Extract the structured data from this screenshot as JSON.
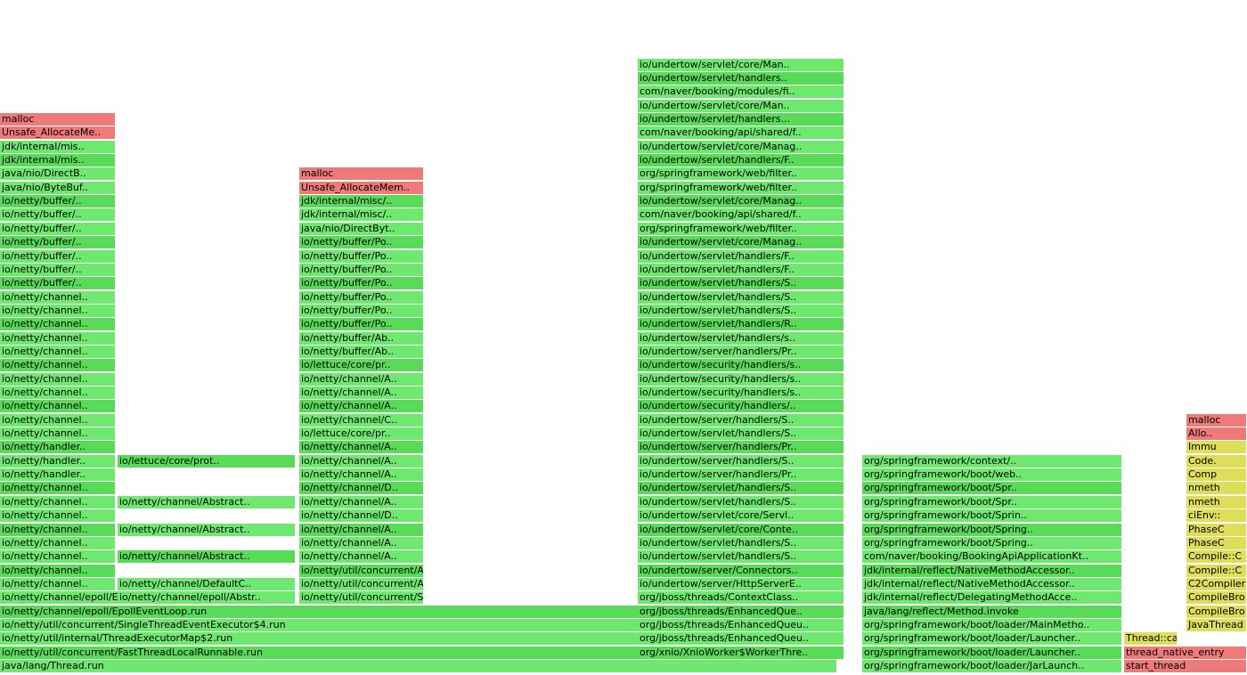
{
  "colors": {
    "java": "#6ee86e",
    "java_alt": "#58dc58",
    "native": "#ee7a7a",
    "jvm": "#dede5a"
  },
  "frames": [
    {
      "name": "java/lang/Thread.run",
      "kind": "g",
      "col": 0,
      "row": 0
    },
    {
      "name": "io/netty/util/concurrent/FastThreadLocalRunnable.run",
      "kind": "g",
      "col": 0,
      "row": 1
    },
    {
      "name": "io/netty/util/internal/ThreadExecutorMap$2.run",
      "kind": "g",
      "col": 0,
      "row": 2
    },
    {
      "name": "io/netty/util/concurrent/SingleThreadEventExecutor$4.run",
      "kind": "g",
      "col": 0,
      "row": 3
    },
    {
      "name": "io/netty/channel/epoll/EpollEventLoop.run",
      "kind": "g",
      "col": 0,
      "row": 4
    },
    {
      "name": "io/netty/channel/epoll/EpollEventLoop.processR..",
      "kind": "g",
      "col": 0,
      "row": 5
    },
    {
      "name": "io/netty/channel..",
      "kind": "g",
      "col": 0,
      "row": 6
    },
    {
      "name": "io/netty/channel..",
      "kind": "g",
      "col": 0,
      "row": 7
    },
    {
      "name": "io/netty/channel..",
      "kind": "g",
      "col": 0,
      "row": 8
    },
    {
      "name": "io/netty/channel..",
      "kind": "g",
      "col": 0,
      "row": 9
    },
    {
      "name": "io/netty/channel..",
      "kind": "g",
      "col": 0,
      "row": 10
    },
    {
      "name": "io/netty/channel..",
      "kind": "g",
      "col": 0,
      "row": 11
    },
    {
      "name": "io/netty/channel..",
      "kind": "g",
      "col": 0,
      "row": 12
    },
    {
      "name": "io/netty/channel..",
      "kind": "g",
      "col": 0,
      "row": 13
    },
    {
      "name": "io/netty/handler..",
      "kind": "g",
      "col": 0,
      "row": 14
    },
    {
      "name": "io/netty/handler..",
      "kind": "g",
      "col": 0,
      "row": 15
    },
    {
      "name": "io/netty/handler..",
      "kind": "g",
      "col": 0,
      "row": 16
    },
    {
      "name": "io/netty/channel..",
      "kind": "g",
      "col": 0,
      "row": 17
    },
    {
      "name": "io/netty/channel..",
      "kind": "g",
      "col": 0,
      "row": 18
    },
    {
      "name": "io/netty/channel..",
      "kind": "g",
      "col": 0,
      "row": 19
    },
    {
      "name": "io/netty/channel..",
      "kind": "g",
      "col": 0,
      "row": 20
    },
    {
      "name": "io/netty/channel..",
      "kind": "g",
      "col": 0,
      "row": 21
    },
    {
      "name": "io/netty/channel..",
      "kind": "g",
      "col": 0,
      "row": 22
    },
    {
      "name": "io/netty/channel..",
      "kind": "g",
      "col": 0,
      "row": 23
    },
    {
      "name": "io/netty/channel..",
      "kind": "g",
      "col": 0,
      "row": 24
    },
    {
      "name": "io/netty/channel..",
      "kind": "g",
      "col": 0,
      "row": 25
    },
    {
      "name": "io/netty/channel..",
      "kind": "g",
      "col": 0,
      "row": 26
    },
    {
      "name": "io/netty/channel..",
      "kind": "g",
      "col": 0,
      "row": 27
    },
    {
      "name": "io/netty/buffer/..",
      "kind": "g",
      "col": 0,
      "row": 28
    },
    {
      "name": "io/netty/buffer/..",
      "kind": "g",
      "col": 0,
      "row": 29
    },
    {
      "name": "io/netty/buffer/..",
      "kind": "g",
      "col": 0,
      "row": 30
    },
    {
      "name": "io/netty/buffer/..",
      "kind": "g",
      "col": 0,
      "row": 31
    },
    {
      "name": "io/netty/buffer/..",
      "kind": "g",
      "col": 0,
      "row": 32
    },
    {
      "name": "io/netty/buffer/..",
      "kind": "g",
      "col": 0,
      "row": 33
    },
    {
      "name": "io/netty/buffer/..",
      "kind": "g",
      "col": 0,
      "row": 34
    },
    {
      "name": "java/nio/ByteBuf..",
      "kind": "g",
      "col": 0,
      "row": 35
    },
    {
      "name": "java/nio/DirectB..",
      "kind": "g",
      "col": 0,
      "row": 36
    },
    {
      "name": "jdk/internal/mis..",
      "kind": "g",
      "col": 0,
      "row": 37
    },
    {
      "name": "jdk/internal/mis..",
      "kind": "g",
      "col": 0,
      "row": 38
    },
    {
      "name": "Unsafe_AllocateMe..",
      "kind": "r",
      "col": 0,
      "row": 39
    },
    {
      "name": "malloc",
      "kind": "r",
      "col": 0,
      "row": 40
    },
    {
      "name": "io/netty/channel/DefaultC..",
      "kind": "g",
      "col": 1,
      "row": 6
    },
    {
      "name": "io/netty/channel/epoll/Abstr..",
      "kind": "g",
      "col": 1,
      "row": 5
    },
    {
      "name": "io/netty/channel/Abstract..",
      "kind": "g",
      "col": 1,
      "row": 8
    },
    {
      "name": "io/netty/channel/Abstract..",
      "kind": "g",
      "col": 1,
      "row": 10
    },
    {
      "name": "io/netty/channel/Abstract..",
      "kind": "g",
      "col": 1,
      "row": 12
    },
    {
      "name": "io/lettuce/core/prot..",
      "kind": "g",
      "col": 1,
      "row": 15
    },
    {
      "name": "io/netty/util/concurrent/SingleThre..",
      "kind": "g",
      "col": 2,
      "row": 5
    },
    {
      "name": "io/netty/util/concurrent/AbstractEv..",
      "kind": "g",
      "col": 2,
      "row": 6
    },
    {
      "name": "io/netty/util/concurrent/AbstractEv..",
      "kind": "g",
      "col": 2,
      "row": 7
    },
    {
      "name": "io/netty/channel/A..",
      "kind": "g",
      "col": 2,
      "row": 8
    },
    {
      "name": "io/netty/channel/A..",
      "kind": "g",
      "col": 2,
      "row": 9
    },
    {
      "name": "io/netty/channel/A..",
      "kind": "g",
      "col": 2,
      "row": 10
    },
    {
      "name": "io/netty/channel/D..",
      "kind": "g",
      "col": 2,
      "row": 11
    },
    {
      "name": "io/netty/channel/A..",
      "kind": "g",
      "col": 2,
      "row": 12
    },
    {
      "name": "io/netty/channel/D..",
      "kind": "g",
      "col": 2,
      "row": 13
    },
    {
      "name": "io/netty/channel/A..",
      "kind": "g",
      "col": 2,
      "row": 14
    },
    {
      "name": "io/netty/channel/A..",
      "kind": "g",
      "col": 2,
      "row": 15
    },
    {
      "name": "io/netty/channel/A..",
      "kind": "g",
      "col": 2,
      "row": 16
    },
    {
      "name": "io/lettuce/core/pr..",
      "kind": "g",
      "col": 2,
      "row": 17
    },
    {
      "name": "io/netty/channel/C..",
      "kind": "g",
      "col": 2,
      "row": 18
    },
    {
      "name": "io/netty/channel/A..",
      "kind": "g",
      "col": 2,
      "row": 19
    },
    {
      "name": "io/netty/channel/A..",
      "kind": "g",
      "col": 2,
      "row": 20
    },
    {
      "name": "io/netty/channel/A..",
      "kind": "g",
      "col": 2,
      "row": 21
    },
    {
      "name": "io/lettuce/core/pr..",
      "kind": "g",
      "col": 2,
      "row": 22
    },
    {
      "name": "io/netty/buffer/Ab..",
      "kind": "g",
      "col": 2,
      "row": 23
    },
    {
      "name": "io/netty/buffer/Ab..",
      "kind": "g",
      "col": 2,
      "row": 24
    },
    {
      "name": "io/netty/buffer/Po..",
      "kind": "g",
      "col": 2,
      "row": 25
    },
    {
      "name": "io/netty/buffer/Po..",
      "kind": "g",
      "col": 2,
      "row": 26
    },
    {
      "name": "io/netty/buffer/Po..",
      "kind": "g",
      "col": 2,
      "row": 27
    },
    {
      "name": "io/netty/buffer/Po..",
      "kind": "g",
      "col": 2,
      "row": 28
    },
    {
      "name": "io/netty/buffer/Po..",
      "kind": "g",
      "col": 2,
      "row": 29
    },
    {
      "name": "io/netty/buffer/Po..",
      "kind": "g",
      "col": 2,
      "row": 30
    },
    {
      "name": "io/netty/buffer/Po..",
      "kind": "g",
      "col": 2,
      "row": 31
    },
    {
      "name": "java/nio/DirectByt..",
      "kind": "g",
      "col": 2,
      "row": 32
    },
    {
      "name": "jdk/internal/misc/..",
      "kind": "g",
      "col": 2,
      "row": 33
    },
    {
      "name": "jdk/internal/misc/..",
      "kind": "g",
      "col": 2,
      "row": 34
    },
    {
      "name": "Unsafe_AllocateMem..",
      "kind": "r",
      "col": 2,
      "row": 35
    },
    {
      "name": "malloc",
      "kind": "r",
      "col": 2,
      "row": 36
    },
    {
      "name": "org/xnio/XnioWorker$WorkerThre..",
      "kind": "g",
      "col": 3,
      "row": 1
    },
    {
      "name": "org/jboss/threads/EnhancedQueu..",
      "kind": "g",
      "col": 3,
      "row": 2
    },
    {
      "name": "org/jboss/threads/EnhancedQueu..",
      "kind": "g",
      "col": 3,
      "row": 3
    },
    {
      "name": "org/jboss/threads/EnhancedQue..",
      "kind": "g",
      "col": 3,
      "row": 4
    },
    {
      "name": "org/jboss/threads/ContextClass..",
      "kind": "g",
      "col": 3,
      "row": 5
    },
    {
      "name": "io/undertow/server/HttpServerE..",
      "kind": "g",
      "col": 3,
      "row": 6
    },
    {
      "name": "io/undertow/server/Connectors..",
      "kind": "g",
      "col": 3,
      "row": 7
    },
    {
      "name": "io/undertow/servlet/handlers/S..",
      "kind": "g",
      "col": 3,
      "row": 8
    },
    {
      "name": "io/undertow/servlet/handlers/S..",
      "kind": "g",
      "col": 3,
      "row": 9
    },
    {
      "name": "io/undertow/servlet/core/Conte..",
      "kind": "g",
      "col": 3,
      "row": 10
    },
    {
      "name": "io/undertow/servlet/core/Servl..",
      "kind": "g",
      "col": 3,
      "row": 11
    },
    {
      "name": "io/undertow/servlet/handlers/S..",
      "kind": "g",
      "col": 3,
      "row": 12
    },
    {
      "name": "io/undertow/servlet/handlers/S..",
      "kind": "g",
      "col": 3,
      "row": 13
    },
    {
      "name": "io/undertow/server/handlers/Pr..",
      "kind": "g",
      "col": 3,
      "row": 14
    },
    {
      "name": "io/undertow/server/handlers/S..",
      "kind": "g",
      "col": 3,
      "row": 15
    },
    {
      "name": "io/undertow/server/handlers/Pr..",
      "kind": "g",
      "col": 3,
      "row": 16
    },
    {
      "name": "io/undertow/servlet/handlers/S..",
      "kind": "g",
      "col": 3,
      "row": 17
    },
    {
      "name": "io/undertow/server/handlers/S..",
      "kind": "g",
      "col": 3,
      "row": 18
    },
    {
      "name": "io/undertow/security/handlers/..",
      "kind": "g",
      "col": 3,
      "row": 19
    },
    {
      "name": "io/undertow/security/handlers/s..",
      "kind": "g",
      "col": 3,
      "row": 20
    },
    {
      "name": "io/undertow/security/handlers/s..",
      "kind": "g",
      "col": 3,
      "row": 21
    },
    {
      "name": "io/undertow/security/handlers/s..",
      "kind": "g",
      "col": 3,
      "row": 22
    },
    {
      "name": "io/undertow/server/handlers/Pr..",
      "kind": "g",
      "col": 3,
      "row": 23
    },
    {
      "name": "io/undertow/servlet/handlers/s..",
      "kind": "g",
      "col": 3,
      "row": 24
    },
    {
      "name": "io/undertow/servlet/handlers/R..",
      "kind": "g",
      "col": 3,
      "row": 25
    },
    {
      "name": "io/undertow/servlet/handlers/S..",
      "kind": "g",
      "col": 3,
      "row": 26
    },
    {
      "name": "io/undertow/servlet/handlers/S..",
      "kind": "g",
      "col": 3,
      "row": 27
    },
    {
      "name": "io/undertow/servlet/handlers/S..",
      "kind": "g",
      "col": 3,
      "row": 28
    },
    {
      "name": "io/undertow/servlet/handlers/F..",
      "kind": "g",
      "col": 3,
      "row": 29
    },
    {
      "name": "io/undertow/servlet/handlers/F..",
      "kind": "g",
      "col": 3,
      "row": 30
    },
    {
      "name": "io/undertow/servlet/core/Manag..",
      "kind": "g",
      "col": 3,
      "row": 31
    },
    {
      "name": "org/springframework/web/filter..",
      "kind": "g",
      "col": 3,
      "row": 32
    },
    {
      "name": "com/naver/booking/api/shared/f..",
      "kind": "g",
      "col": 3,
      "row": 33
    },
    {
      "name": "io/undertow/servlet/core/Manag..",
      "kind": "g",
      "col": 3,
      "row": 34
    },
    {
      "name": "org/springframework/web/filter..",
      "kind": "g",
      "col": 3,
      "row": 35
    },
    {
      "name": "org/springframework/web/filter..",
      "kind": "g",
      "col": 3,
      "row": 36
    },
    {
      "name": "io/undertow/servlet/handlers/F..",
      "kind": "g",
      "col": 3,
      "row": 37
    },
    {
      "name": "io/undertow/servlet/core/Manag..",
      "kind": "g",
      "col": 3,
      "row": 38
    },
    {
      "name": "com/naver/booking/api/shared/f..",
      "kind": "g",
      "col": 3,
      "row": 39
    },
    {
      "name": "io/undertow/servlet/handlers...",
      "kind": "g",
      "col": 3,
      "row": 40
    },
    {
      "name": "io/undertow/servlet/core/Man..",
      "kind": "g",
      "col": 3,
      "row": 41
    },
    {
      "name": "com/naver/booking/modules/fi..",
      "kind": "g",
      "col": 3,
      "row": 42
    },
    {
      "name": "io/undertow/servlet/handlers..",
      "kind": "g",
      "col": 3,
      "row": 43
    },
    {
      "name": "io/undertow/servlet/core/Man..",
      "kind": "g",
      "col": 3,
      "row": 44
    },
    {
      "name": "org/springframework/boot/loader/JarLaunch..",
      "kind": "g",
      "col": 4,
      "row": 0
    },
    {
      "name": "org/springframework/boot/loader/Launcher..",
      "kind": "g",
      "col": 4,
      "row": 1
    },
    {
      "name": "org/springframework/boot/loader/Launcher..",
      "kind": "g",
      "col": 4,
      "row": 2
    },
    {
      "name": "org/springframework/boot/loader/MainMetho..",
      "kind": "g",
      "col": 4,
      "row": 3
    },
    {
      "name": "java/lang/reflect/Method.invoke",
      "kind": "g",
      "col": 4,
      "row": 4
    },
    {
      "name": "jdk/internal/reflect/DelegatingMethodAcce..",
      "kind": "g",
      "col": 4,
      "row": 5
    },
    {
      "name": "jdk/internal/reflect/NativeMethodAccessor..",
      "kind": "g",
      "col": 4,
      "row": 6
    },
    {
      "name": "jdk/internal/reflect/NativeMethodAccessor..",
      "kind": "g",
      "col": 4,
      "row": 7
    },
    {
      "name": "com/naver/booking/BookingApiApplicationKt..",
      "kind": "g",
      "col": 4,
      "row": 8
    },
    {
      "name": "org/springframework/boot/Spring..",
      "kind": "g",
      "col": 4,
      "row": 9
    },
    {
      "name": "org/springframework/boot/Spring..",
      "kind": "g",
      "col": 4,
      "row": 10
    },
    {
      "name": "org/springframework/boot/Sprin..",
      "kind": "g",
      "col": 4,
      "row": 11
    },
    {
      "name": "org/springframework/boot/Spr..",
      "kind": "g",
      "col": 4,
      "row": 12
    },
    {
      "name": "org/springframework/boot/Spr..",
      "kind": "g",
      "col": 4,
      "row": 13
    },
    {
      "name": "org/springframework/boot/web..",
      "kind": "g",
      "col": 4,
      "row": 14
    },
    {
      "name": "org/springframework/context/..",
      "kind": "g",
      "col": 4,
      "row": 15
    },
    {
      "name": "start_thread",
      "kind": "r",
      "col": 5,
      "row": 0
    },
    {
      "name": "thread_native_entry",
      "kind": "r",
      "col": 5,
      "row": 1
    },
    {
      "name": "Thread::call_run",
      "kind": "y",
      "col": 5,
      "row": 2
    },
    {
      "name": "JavaThread",
      "kind": "y",
      "col": 6,
      "row": 3
    },
    {
      "name": "CompileBro",
      "kind": "y",
      "col": 6,
      "row": 4
    },
    {
      "name": "CompileBro",
      "kind": "y",
      "col": 6,
      "row": 5
    },
    {
      "name": "C2Compiler",
      "kind": "y",
      "col": 6,
      "row": 6
    },
    {
      "name": "Compile::C",
      "kind": "y",
      "col": 6,
      "row": 7
    },
    {
      "name": "Compile::C",
      "kind": "y",
      "col": 6,
      "row": 8
    },
    {
      "name": "PhaseC",
      "kind": "y",
      "col": 6,
      "row": 9
    },
    {
      "name": "PhaseC",
      "kind": "y",
      "col": 6,
      "row": 10
    },
    {
      "name": "ciEnv::",
      "kind": "y",
      "col": 6,
      "row": 11
    },
    {
      "name": "nmeth",
      "kind": "y",
      "col": 6,
      "row": 12
    },
    {
      "name": "nmeth",
      "kind": "y",
      "col": 6,
      "row": 13
    },
    {
      "name": "Comp",
      "kind": "y",
      "col": 6,
      "row": 14
    },
    {
      "name": "Code.",
      "kind": "y",
      "col": 6,
      "row": 15
    },
    {
      "name": "Immu",
      "kind": "y",
      "col": 6,
      "row": 16
    },
    {
      "name": "Allo..",
      "kind": "r",
      "col": 6,
      "row": 17
    },
    {
      "name": "malloc",
      "kind": "r",
      "col": 6,
      "row": 18
    }
  ]
}
